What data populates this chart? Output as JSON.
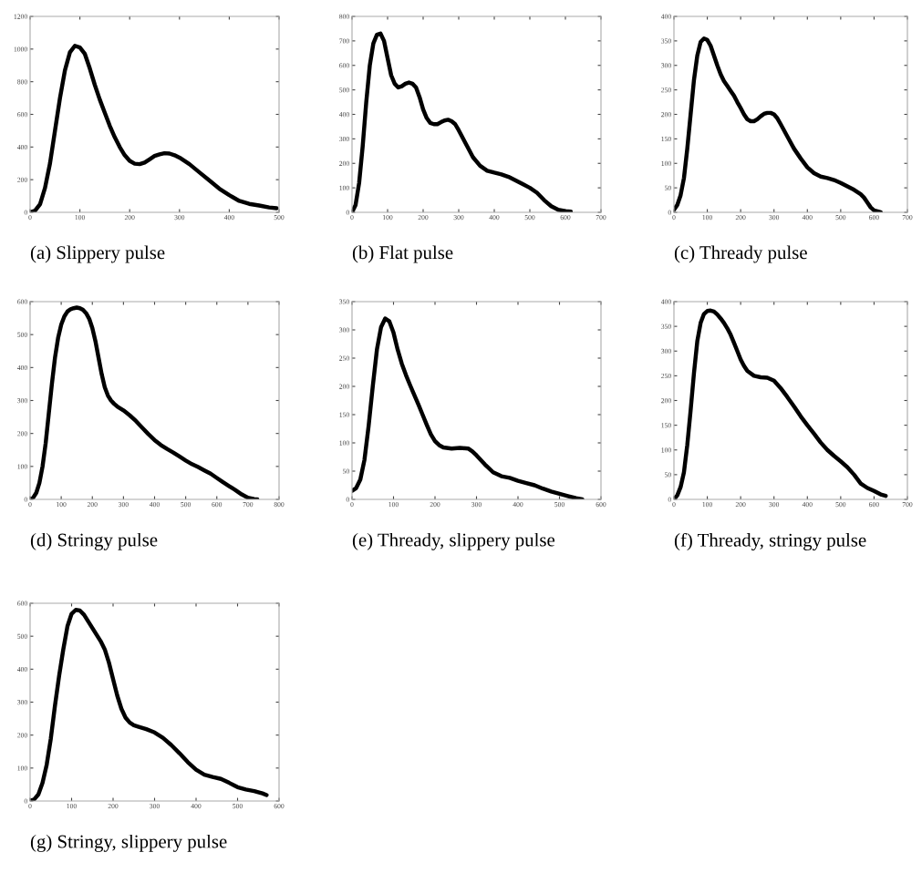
{
  "chart_data": [
    {
      "type": "line",
      "title": "(a) Slippery pulse",
      "xlim": [
        0,
        500
      ],
      "xticks": [
        0,
        100,
        200,
        300,
        400,
        500
      ],
      "ylim": [
        0,
        1200
      ],
      "yticks": [
        0,
        200,
        400,
        600,
        800,
        1000,
        1200
      ],
      "grid": false,
      "marker": "none",
      "line_style": "solid",
      "series": [
        {
          "color": "#000000",
          "x": [
            0,
            10,
            20,
            30,
            40,
            50,
            60,
            70,
            80,
            90,
            100,
            110,
            120,
            130,
            140,
            150,
            160,
            170,
            180,
            190,
            200,
            210,
            220,
            230,
            240,
            250,
            260,
            270,
            280,
            290,
            300,
            320,
            340,
            360,
            380,
            400,
            420,
            440,
            460,
            480,
            495
          ],
          "values": [
            0,
            10,
            50,
            150,
            300,
            500,
            700,
            870,
            980,
            1020,
            1010,
            970,
            880,
            780,
            690,
            610,
            530,
            460,
            400,
            350,
            315,
            298,
            295,
            305,
            325,
            345,
            355,
            362,
            360,
            350,
            335,
            295,
            245,
            195,
            145,
            105,
            70,
            52,
            42,
            30,
            25
          ]
        }
      ]
    },
    {
      "type": "line",
      "title": "(b) Flat pulse",
      "xlim": [
        0,
        700
      ],
      "xticks": [
        0,
        100,
        200,
        300,
        400,
        500,
        600,
        700
      ],
      "ylim": [
        0,
        800
      ],
      "yticks": [
        0,
        100,
        200,
        300,
        400,
        500,
        600,
        700,
        800
      ],
      "grid": false,
      "marker": "none",
      "line_style": "solid",
      "series": [
        {
          "color": "#000000",
          "x": [
            0,
            10,
            20,
            30,
            40,
            50,
            60,
            70,
            80,
            90,
            100,
            110,
            120,
            130,
            140,
            150,
            160,
            170,
            180,
            190,
            200,
            210,
            220,
            230,
            240,
            250,
            260,
            270,
            280,
            290,
            300,
            320,
            340,
            360,
            380,
            400,
            420,
            440,
            460,
            480,
            500,
            520,
            540,
            560,
            580,
            600,
            615
          ],
          "values": [
            0,
            30,
            120,
            270,
            450,
            600,
            690,
            725,
            730,
            700,
            630,
            560,
            525,
            510,
            515,
            525,
            530,
            525,
            510,
            470,
            420,
            385,
            365,
            360,
            360,
            368,
            375,
            378,
            372,
            360,
            335,
            280,
            225,
            190,
            170,
            162,
            155,
            145,
            130,
            115,
            100,
            80,
            50,
            25,
            10,
            5,
            3
          ]
        }
      ]
    },
    {
      "type": "line",
      "title": "(c) Thready pulse",
      "xlim": [
        0,
        700
      ],
      "xticks": [
        0,
        100,
        200,
        300,
        400,
        500,
        600,
        700
      ],
      "ylim": [
        0,
        400
      ],
      "yticks": [
        0,
        50,
        100,
        150,
        200,
        250,
        300,
        350,
        400
      ],
      "grid": false,
      "marker": "none",
      "line_style": "solid",
      "series": [
        {
          "color": "#000000",
          "x": [
            0,
            10,
            20,
            30,
            40,
            50,
            60,
            70,
            80,
            90,
            100,
            110,
            120,
            130,
            140,
            150,
            160,
            170,
            180,
            190,
            200,
            210,
            220,
            230,
            240,
            250,
            260,
            270,
            280,
            290,
            300,
            310,
            320,
            340,
            360,
            380,
            400,
            420,
            440,
            460,
            480,
            500,
            520,
            540,
            560,
            570,
            580,
            590,
            600,
            620
          ],
          "values": [
            5,
            15,
            35,
            70,
            130,
            200,
            270,
            320,
            348,
            355,
            352,
            340,
            320,
            300,
            282,
            268,
            258,
            248,
            238,
            225,
            213,
            200,
            190,
            186,
            186,
            190,
            196,
            201,
            203,
            203,
            200,
            192,
            180,
            155,
            130,
            110,
            92,
            80,
            73,
            70,
            66,
            60,
            53,
            46,
            37,
            30,
            20,
            10,
            4,
            0
          ]
        }
      ]
    },
    {
      "type": "line",
      "title": "(d) Stringy pulse",
      "xlim": [
        0,
        800
      ],
      "xticks": [
        0,
        100,
        200,
        300,
        400,
        500,
        600,
        700,
        800
      ],
      "ylim": [
        0,
        600
      ],
      "yticks": [
        0,
        100,
        200,
        300,
        400,
        500,
        600
      ],
      "grid": false,
      "marker": "none",
      "line_style": "solid",
      "series": [
        {
          "color": "#000000",
          "x": [
            0,
            10,
            20,
            30,
            40,
            50,
            60,
            70,
            80,
            90,
            100,
            110,
            120,
            130,
            140,
            150,
            160,
            170,
            180,
            190,
            200,
            210,
            220,
            230,
            240,
            250,
            260,
            270,
            280,
            300,
            320,
            340,
            360,
            380,
            400,
            420,
            440,
            460,
            480,
            500,
            520,
            540,
            560,
            580,
            600,
            620,
            640,
            660,
            680,
            700,
            720,
            730
          ],
          "values": [
            0,
            5,
            20,
            50,
            100,
            170,
            260,
            350,
            430,
            490,
            530,
            555,
            570,
            577,
            580,
            582,
            580,
            575,
            565,
            548,
            520,
            480,
            430,
            380,
            340,
            315,
            300,
            290,
            282,
            270,
            255,
            238,
            218,
            198,
            180,
            165,
            153,
            142,
            130,
            118,
            107,
            98,
            88,
            78,
            65,
            52,
            40,
            28,
            15,
            5,
            1,
            0
          ]
        }
      ]
    },
    {
      "type": "line",
      "title": "(e) Thready, slippery pulse",
      "xlim": [
        0,
        600
      ],
      "xticks": [
        0,
        100,
        200,
        300,
        400,
        500,
        600
      ],
      "ylim": [
        0,
        350
      ],
      "yticks": [
        0,
        50,
        100,
        150,
        200,
        250,
        300,
        350
      ],
      "grid": false,
      "marker": "none",
      "line_style": "solid",
      "series": [
        {
          "color": "#000000",
          "x": [
            0,
            10,
            20,
            30,
            40,
            50,
            60,
            70,
            80,
            90,
            100,
            110,
            120,
            130,
            140,
            150,
            160,
            170,
            180,
            190,
            200,
            210,
            220,
            240,
            260,
            280,
            290,
            300,
            320,
            340,
            360,
            380,
            400,
            420,
            440,
            460,
            480,
            500,
            520,
            540,
            555
          ],
          "values": [
            15,
            20,
            35,
            70,
            130,
            200,
            265,
            305,
            320,
            315,
            295,
            265,
            240,
            220,
            202,
            185,
            168,
            150,
            132,
            115,
            103,
            96,
            92,
            90,
            91,
            90,
            85,
            78,
            62,
            48,
            41,
            38,
            33,
            29,
            25,
            19,
            14,
            10,
            6,
            2,
            0
          ]
        }
      ]
    },
    {
      "type": "line",
      "title": "(f) Thready, stringy pulse",
      "xlim": [
        0,
        700
      ],
      "xticks": [
        0,
        100,
        200,
        300,
        400,
        500,
        600,
        700
      ],
      "ylim": [
        0,
        400
      ],
      "yticks": [
        0,
        50,
        100,
        150,
        200,
        250,
        300,
        350,
        400
      ],
      "grid": false,
      "marker": "none",
      "line_style": "solid",
      "series": [
        {
          "color": "#000000",
          "x": [
            0,
            10,
            20,
            30,
            40,
            50,
            60,
            70,
            80,
            90,
            100,
            110,
            120,
            130,
            140,
            150,
            160,
            170,
            180,
            190,
            200,
            210,
            220,
            240,
            260,
            280,
            300,
            320,
            340,
            360,
            380,
            400,
            420,
            440,
            460,
            480,
            500,
            520,
            540,
            560,
            580,
            600,
            620,
            635
          ],
          "values": [
            0,
            8,
            25,
            55,
            110,
            180,
            255,
            320,
            357,
            375,
            381,
            382,
            380,
            374,
            366,
            357,
            346,
            333,
            317,
            300,
            283,
            270,
            260,
            250,
            247,
            246,
            240,
            225,
            207,
            188,
            168,
            150,
            133,
            115,
            100,
            88,
            77,
            65,
            50,
            32,
            23,
            17,
            10,
            7
          ]
        }
      ]
    },
    {
      "type": "line",
      "title": "(g) Stringy, slippery pulse",
      "xlim": [
        0,
        600
      ],
      "xticks": [
        0,
        100,
        200,
        300,
        400,
        500,
        600
      ],
      "ylim": [
        0,
        600
      ],
      "yticks": [
        0,
        100,
        200,
        300,
        400,
        500,
        600
      ],
      "grid": false,
      "marker": "none",
      "line_style": "solid",
      "series": [
        {
          "color": "#000000",
          "x": [
            0,
            10,
            20,
            30,
            40,
            50,
            60,
            70,
            80,
            90,
            100,
            110,
            120,
            130,
            140,
            150,
            160,
            170,
            180,
            190,
            200,
            210,
            220,
            230,
            240,
            250,
            260,
            280,
            300,
            320,
            340,
            360,
            380,
            400,
            420,
            440,
            460,
            480,
            500,
            520,
            540,
            560,
            570
          ],
          "values": [
            0,
            5,
            20,
            55,
            110,
            190,
            290,
            380,
            460,
            530,
            568,
            580,
            578,
            565,
            545,
            525,
            505,
            485,
            460,
            420,
            370,
            320,
            280,
            253,
            238,
            230,
            226,
            218,
            208,
            192,
            170,
            145,
            118,
            95,
            80,
            73,
            67,
            55,
            42,
            35,
            30,
            23,
            18
          ]
        }
      ]
    }
  ]
}
